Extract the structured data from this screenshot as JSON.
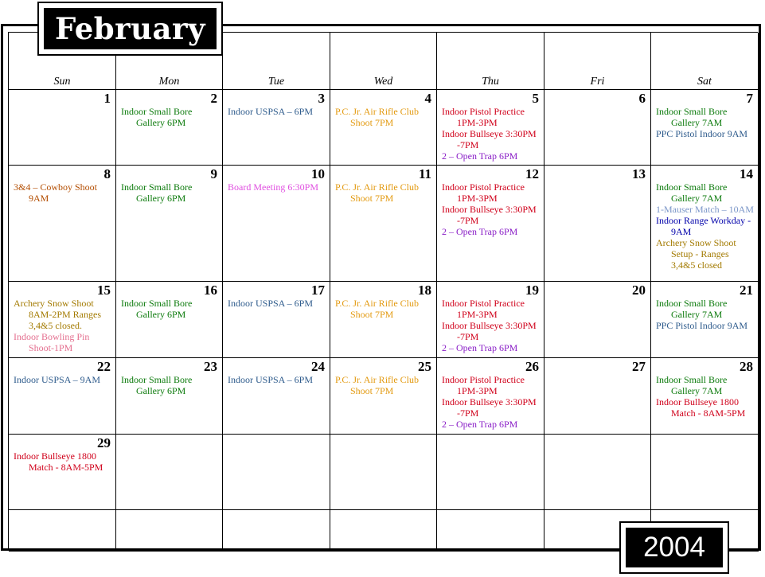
{
  "title": {
    "month": "February",
    "year": "2004"
  },
  "colors": {
    "green": "#0b7a0b",
    "blue": "#2e5b8c",
    "orange": "#e39a10",
    "red": "#d0001a",
    "purple": "#8a1ec7",
    "brown": "#b34d00",
    "magenta": "#e04fe0",
    "olive": "#a37a00",
    "pink": "#e46f8f",
    "steel": "#7b96c8",
    "navy": "#0000aa"
  },
  "days_of_week": [
    "Sun",
    "Mon",
    "Tue",
    "Wed",
    "Thu",
    "Fri",
    "Sat"
  ],
  "weeks": [
    [
      {
        "date": "1",
        "events": []
      },
      {
        "date": "2",
        "events": [
          {
            "text": "Indoor Small Bore Gallery 6PM",
            "color": "#0b7a0b"
          }
        ]
      },
      {
        "date": "3",
        "events": [
          {
            "text": "Indoor USPSA – 6PM",
            "color": "#2e5b8c"
          }
        ]
      },
      {
        "date": "4",
        "events": [
          {
            "text": "P.C. Jr. Air Rifle Club Shoot 7PM",
            "color": "#e39a10"
          }
        ]
      },
      {
        "date": "5",
        "events": [
          {
            "text": "Indoor Pistol Practice 1PM-3PM",
            "color": "#d0001a"
          },
          {
            "text": "Indoor Bullseye 3:30PM -7PM",
            "color": "#d0001a"
          },
          {
            "text": "2 – Open Trap 6PM",
            "color": "#8a1ec7"
          }
        ]
      },
      {
        "date": "6",
        "events": []
      },
      {
        "date": "7",
        "events": [
          {
            "text": "Indoor Small Bore Gallery 7AM",
            "color": "#0b7a0b"
          },
          {
            "text": "PPC Pistol Indoor 9AM",
            "color": "#2e5b8c"
          }
        ]
      }
    ],
    [
      {
        "date": "8",
        "events": [
          {
            "text": "3&4 – Cowboy Shoot 9AM",
            "color": "#b34d00"
          }
        ]
      },
      {
        "date": "9",
        "events": [
          {
            "text": "Indoor Small Bore Gallery 6PM",
            "color": "#0b7a0b"
          }
        ]
      },
      {
        "date": "10",
        "events": [
          {
            "text": "Board Meeting 6:30PM",
            "color": "#e04fe0"
          }
        ]
      },
      {
        "date": "11",
        "events": [
          {
            "text": "P.C. Jr. Air Rifle Club Shoot 7PM",
            "color": "#e39a10"
          }
        ]
      },
      {
        "date": "12",
        "events": [
          {
            "text": "Indoor Pistol Practice 1PM-3PM",
            "color": "#d0001a"
          },
          {
            "text": "Indoor Bullseye 3:30PM -7PM",
            "color": "#d0001a"
          },
          {
            "text": "2 – Open Trap 6PM",
            "color": "#8a1ec7"
          }
        ]
      },
      {
        "date": "13",
        "events": []
      },
      {
        "date": "14",
        "events": [
          {
            "text": "Indoor Small Bore Gallery 7AM",
            "color": "#0b7a0b"
          },
          {
            "text": "1-Mauser Match – 10AM",
            "color": "#7b96c8"
          },
          {
            "text": "Indoor Range Workday - 9AM",
            "color": "#0000aa"
          },
          {
            "text": "Archery Snow Shoot Setup - Ranges 3,4&5 closed",
            "color": "#a37a00"
          }
        ]
      }
    ],
    [
      {
        "date": "15",
        "events": [
          {
            "text": "Archery Snow Shoot 8AM-2PM Ranges 3,4&5 closed.",
            "color": "#a37a00"
          },
          {
            "text": "Indoor Bowling Pin Shoot-1PM",
            "color": "#e46f8f"
          }
        ]
      },
      {
        "date": "16",
        "events": [
          {
            "text": "Indoor Small Bore Gallery 6PM",
            "color": "#0b7a0b"
          }
        ]
      },
      {
        "date": "17",
        "events": [
          {
            "text": "Indoor USPSA – 6PM",
            "color": "#2e5b8c"
          }
        ]
      },
      {
        "date": "18",
        "events": [
          {
            "text": "P.C. Jr. Air Rifle Club Shoot 7PM",
            "color": "#e39a10"
          }
        ]
      },
      {
        "date": "19",
        "events": [
          {
            "text": "Indoor Pistol Practice 1PM-3PM",
            "color": "#d0001a"
          },
          {
            "text": "Indoor Bullseye 3:30PM -7PM",
            "color": "#d0001a"
          },
          {
            "text": "2 – Open Trap 6PM",
            "color": "#8a1ec7"
          }
        ]
      },
      {
        "date": "20",
        "events": []
      },
      {
        "date": "21",
        "events": [
          {
            "text": "Indoor Small Bore Gallery 7AM",
            "color": "#0b7a0b"
          },
          {
            "text": "PPC Pistol Indoor 9AM",
            "color": "#2e5b8c"
          }
        ]
      }
    ],
    [
      {
        "date": "22",
        "events": [
          {
            "text": "Indoor USPSA – 9AM",
            "color": "#2e5b8c"
          }
        ]
      },
      {
        "date": "23",
        "events": [
          {
            "text": "Indoor Small Bore Gallery 6PM",
            "color": "#0b7a0b"
          }
        ]
      },
      {
        "date": "24",
        "events": [
          {
            "text": "Indoor USPSA – 6PM",
            "color": "#2e5b8c"
          }
        ]
      },
      {
        "date": "25",
        "events": [
          {
            "text": "P.C. Jr. Air Rifle Club Shoot 7PM",
            "color": "#e39a10"
          }
        ]
      },
      {
        "date": "26",
        "events": [
          {
            "text": "Indoor Pistol Practice 1PM-3PM",
            "color": "#d0001a"
          },
          {
            "text": "Indoor Bullseye 3:30PM -7PM",
            "color": "#d0001a"
          },
          {
            "text": "2 – Open Trap 6PM",
            "color": "#8a1ec7"
          }
        ]
      },
      {
        "date": "27",
        "events": []
      },
      {
        "date": "28",
        "events": [
          {
            "text": "Indoor Small Bore Gallery 7AM",
            "color": "#0b7a0b"
          },
          {
            "text": "Indoor Bullseye 1800 Match - 8AM-5PM",
            "color": "#d0001a"
          }
        ]
      }
    ],
    [
      {
        "date": "29",
        "events": [
          {
            "text": "Indoor Bullseye 1800 Match - 8AM-5PM",
            "color": "#d0001a"
          }
        ]
      },
      {
        "date": "",
        "events": []
      },
      {
        "date": "",
        "events": []
      },
      {
        "date": "",
        "events": []
      },
      {
        "date": "",
        "events": []
      },
      {
        "date": "",
        "events": []
      },
      {
        "date": "",
        "events": []
      }
    ],
    [
      {
        "date": "",
        "events": []
      },
      {
        "date": "",
        "events": []
      },
      {
        "date": "",
        "events": []
      },
      {
        "date": "",
        "events": []
      },
      {
        "date": "",
        "events": []
      },
      {
        "date": "",
        "events": []
      },
      {
        "date": "",
        "events": []
      }
    ]
  ]
}
